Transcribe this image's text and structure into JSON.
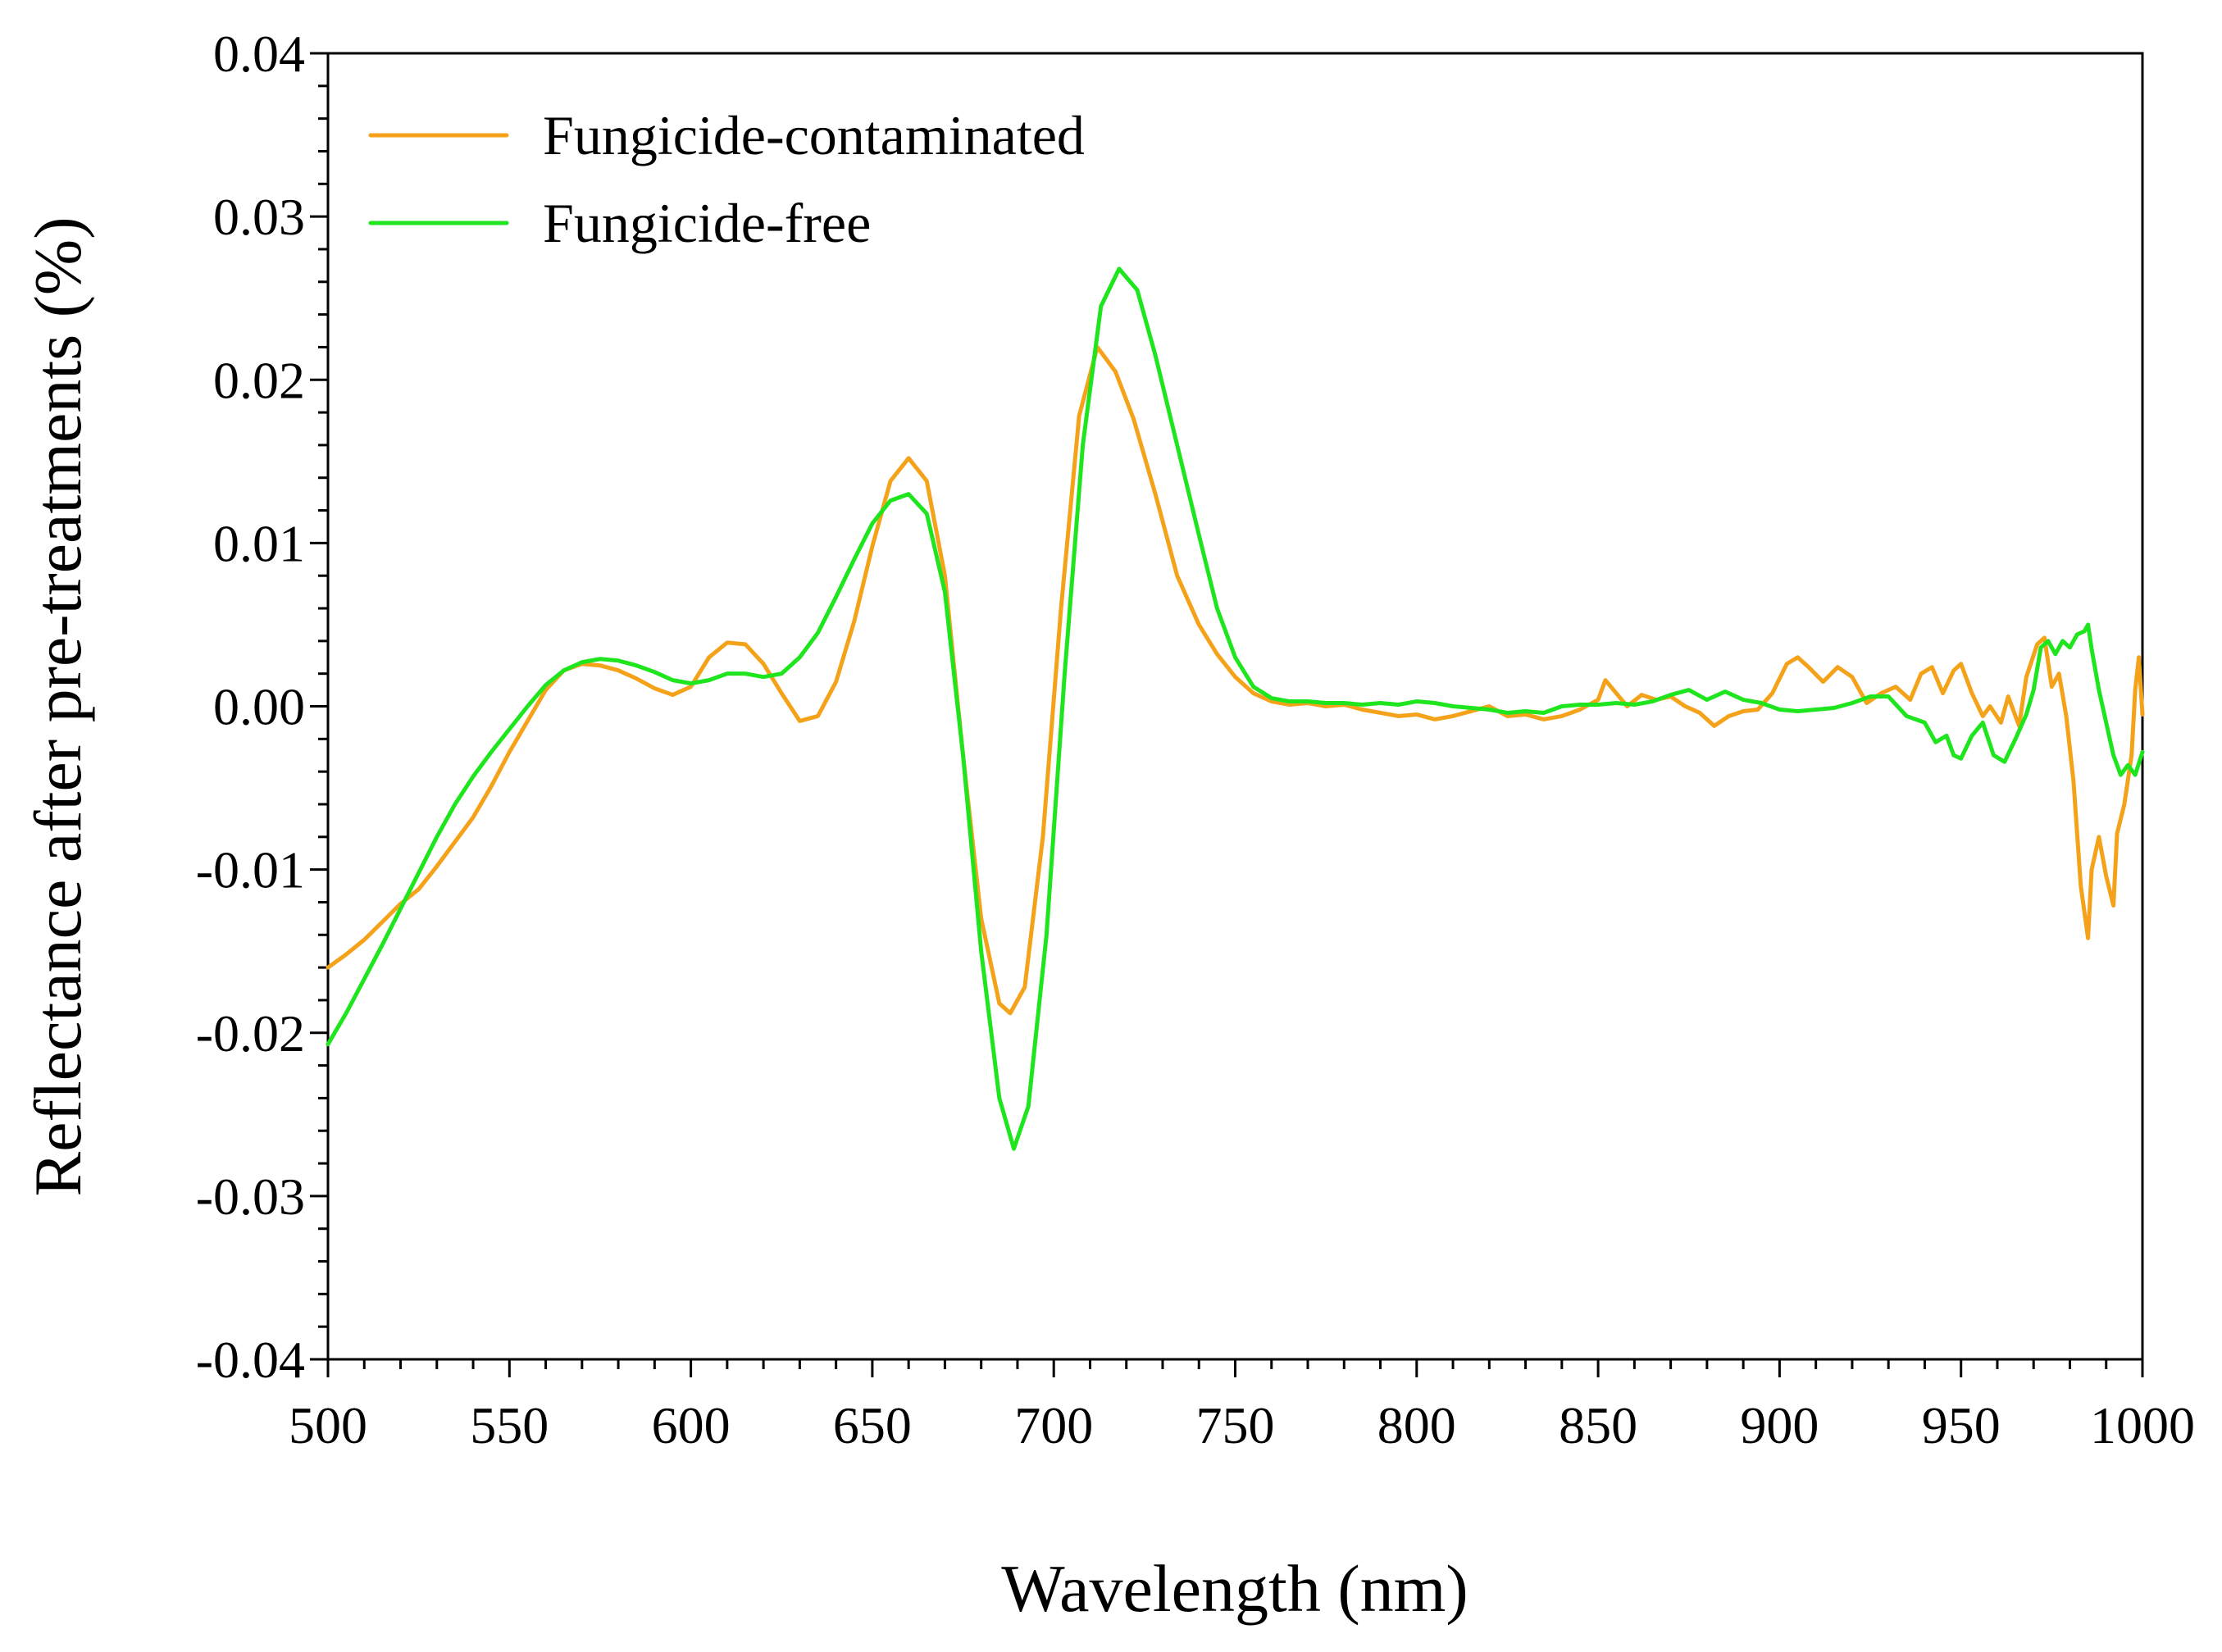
{
  "chart_data": {
    "type": "line",
    "title": "",
    "xlabel": "Wavelength (nm)",
    "ylabel": "Reflectance after pre-treatments (%)",
    "xlim": [
      500,
      1000
    ],
    "ylim": [
      -0.04,
      0.04
    ],
    "x_major_ticks": [
      500,
      550,
      600,
      650,
      700,
      750,
      800,
      850,
      900,
      950,
      1000
    ],
    "x_tick_labels": [
      "500",
      "550",
      "600",
      "650",
      "700",
      "750",
      "800",
      "850",
      "900",
      "950",
      "1000"
    ],
    "x_minor_step": 10,
    "y_major_ticks": [
      -0.04,
      -0.03,
      -0.02,
      -0.01,
      0.0,
      0.01,
      0.02,
      0.03,
      0.04
    ],
    "y_tick_labels": [
      "-0.04",
      "-0.03",
      "-0.02",
      "-0.01",
      "0.00",
      "0.01",
      "0.02",
      "0.03",
      "0.04"
    ],
    "y_minor_step": 0.002,
    "grid": false,
    "legend_position": "top-left",
    "series": [
      {
        "name": "Fungicide-contaminated",
        "color": "#F5A21B",
        "points": [
          [
            500,
            -0.016
          ],
          [
            505,
            -0.0152
          ],
          [
            510,
            -0.0143
          ],
          [
            515,
            -0.0132
          ],
          [
            520,
            -0.0121
          ],
          [
            525,
            -0.0112
          ],
          [
            530,
            -0.0098
          ],
          [
            535,
            -0.0083
          ],
          [
            540,
            -0.0068
          ],
          [
            545,
            -0.0049
          ],
          [
            550,
            -0.0028
          ],
          [
            555,
            -0.0009
          ],
          [
            560,
            0.001
          ],
          [
            565,
            0.0022
          ],
          [
            570,
            0.0026
          ],
          [
            575,
            0.0025
          ],
          [
            580,
            0.0022
          ],
          [
            585,
            0.0017
          ],
          [
            590,
            0.0011
          ],
          [
            595,
            0.0007
          ],
          [
            600,
            0.0012
          ],
          [
            605,
            0.003
          ],
          [
            610,
            0.0039
          ],
          [
            615,
            0.0038
          ],
          [
            620,
            0.0026
          ],
          [
            625,
            0.0008
          ],
          [
            630,
            -0.0009
          ],
          [
            635,
            -0.0006
          ],
          [
            640,
            0.0015
          ],
          [
            645,
            0.0052
          ],
          [
            650,
            0.0098
          ],
          [
            655,
            0.0138
          ],
          [
            660,
            0.0152
          ],
          [
            665,
            0.0138
          ],
          [
            670,
            0.008
          ],
          [
            675,
            -0.003
          ],
          [
            680,
            -0.013
          ],
          [
            685,
            -0.0182
          ],
          [
            688,
            -0.0188
          ],
          [
            692,
            -0.0172
          ],
          [
            697,
            -0.008
          ],
          [
            702,
            0.006
          ],
          [
            707,
            0.0178
          ],
          [
            712,
            0.022
          ],
          [
            717,
            0.0205
          ],
          [
            722,
            0.0176
          ],
          [
            728,
            0.013
          ],
          [
            734,
            0.008
          ],
          [
            740,
            0.005
          ],
          [
            745,
            0.0032
          ],
          [
            750,
            0.0018
          ],
          [
            755,
            0.0008
          ],
          [
            760,
            0.0003
          ],
          [
            765,
            0.0001
          ],
          [
            770,
            0.0002
          ],
          [
            775,
            0.0
          ],
          [
            780,
            0.0001
          ],
          [
            785,
            -0.0002
          ],
          [
            790,
            -0.0004
          ],
          [
            795,
            -0.0006
          ],
          [
            800,
            -0.0005
          ],
          [
            805,
            -0.0008
          ],
          [
            810,
            -0.0006
          ],
          [
            815,
            -0.0003
          ],
          [
            820,
            0.0
          ],
          [
            825,
            -0.0006
          ],
          [
            830,
            -0.0005
          ],
          [
            835,
            -0.0008
          ],
          [
            840,
            -0.0006
          ],
          [
            845,
            -0.0002
          ],
          [
            850,
            0.0004
          ],
          [
            852,
            0.0016
          ],
          [
            855,
            0.0008
          ],
          [
            858,
            0.0
          ],
          [
            862,
            0.0007
          ],
          [
            866,
            0.0004
          ],
          [
            870,
            0.0006
          ],
          [
            874,
            0.0
          ],
          [
            878,
            -0.0004
          ],
          [
            882,
            -0.0012
          ],
          [
            886,
            -0.0006
          ],
          [
            890,
            -0.0003
          ],
          [
            894,
            -0.0002
          ],
          [
            898,
            0.0008
          ],
          [
            902,
            0.0026
          ],
          [
            905,
            0.003
          ],
          [
            908,
            0.0024
          ],
          [
            912,
            0.0015
          ],
          [
            916,
            0.0024
          ],
          [
            920,
            0.0018
          ],
          [
            924,
            0.0002
          ],
          [
            928,
            0.0008
          ],
          [
            932,
            0.0012
          ],
          [
            936,
            0.0004
          ],
          [
            939,
            0.002
          ],
          [
            942,
            0.0024
          ],
          [
            945,
            0.0008
          ],
          [
            948,
            0.0022
          ],
          [
            950,
            0.0026
          ],
          [
            953,
            0.0008
          ],
          [
            956,
            -0.0006
          ],
          [
            958,
            0.0
          ],
          [
            961,
            -0.001
          ],
          [
            963,
            0.0006
          ],
          [
            966,
            -0.0012
          ],
          [
            968,
            0.0018
          ],
          [
            971,
            0.0038
          ],
          [
            973,
            0.0042
          ],
          [
            975,
            0.0012
          ],
          [
            977,
            0.002
          ],
          [
            979,
            -0.0006
          ],
          [
            981,
            -0.0046
          ],
          [
            983,
            -0.011
          ],
          [
            985,
            -0.0142
          ],
          [
            986,
            -0.01
          ],
          [
            988,
            -0.008
          ],
          [
            990,
            -0.0104
          ],
          [
            992,
            -0.0122
          ],
          [
            993,
            -0.0078
          ],
          [
            995,
            -0.006
          ],
          [
            997,
            -0.003
          ],
          [
            998,
            0.001
          ],
          [
            999,
            0.003
          ],
          [
            1000,
            -0.0005
          ]
        ]
      },
      {
        "name": "Fungicide-free",
        "color": "#1FE51F",
        "points": [
          [
            500,
            -0.0207
          ],
          [
            505,
            -0.0188
          ],
          [
            510,
            -0.0167
          ],
          [
            515,
            -0.0146
          ],
          [
            520,
            -0.0124
          ],
          [
            525,
            -0.0102
          ],
          [
            530,
            -0.008
          ],
          [
            535,
            -0.006
          ],
          [
            540,
            -0.0043
          ],
          [
            545,
            -0.0028
          ],
          [
            550,
            -0.0014
          ],
          [
            555,
            0.0
          ],
          [
            560,
            0.0013
          ],
          [
            565,
            0.0022
          ],
          [
            570,
            0.0027
          ],
          [
            575,
            0.0029
          ],
          [
            580,
            0.0028
          ],
          [
            585,
            0.0025
          ],
          [
            590,
            0.0021
          ],
          [
            595,
            0.0016
          ],
          [
            600,
            0.0014
          ],
          [
            605,
            0.0016
          ],
          [
            610,
            0.002
          ],
          [
            615,
            0.002
          ],
          [
            620,
            0.0018
          ],
          [
            625,
            0.002
          ],
          [
            630,
            0.003
          ],
          [
            635,
            0.0045
          ],
          [
            640,
            0.0067
          ],
          [
            645,
            0.009
          ],
          [
            650,
            0.0112
          ],
          [
            655,
            0.0126
          ],
          [
            660,
            0.013
          ],
          [
            665,
            0.0118
          ],
          [
            670,
            0.007
          ],
          [
            675,
            -0.003
          ],
          [
            680,
            -0.015
          ],
          [
            685,
            -0.024
          ],
          [
            689,
            -0.0271
          ],
          [
            693,
            -0.0245
          ],
          [
            698,
            -0.014
          ],
          [
            703,
            0.002
          ],
          [
            708,
            0.016
          ],
          [
            713,
            0.0245
          ],
          [
            718,
            0.0268
          ],
          [
            723,
            0.0255
          ],
          [
            728,
            0.0215
          ],
          [
            734,
            0.016
          ],
          [
            740,
            0.0105
          ],
          [
            745,
            0.006
          ],
          [
            750,
            0.003
          ],
          [
            755,
            0.0012
          ],
          [
            760,
            0.0005
          ],
          [
            765,
            0.0003
          ],
          [
            770,
            0.0003
          ],
          [
            775,
            0.0002
          ],
          [
            780,
            0.0002
          ],
          [
            785,
            0.0001
          ],
          [
            790,
            0.0002
          ],
          [
            795,
            0.0001
          ],
          [
            800,
            0.0003
          ],
          [
            805,
            0.0002
          ],
          [
            810,
            0.0
          ],
          [
            815,
            -0.0001
          ],
          [
            820,
            -0.0002
          ],
          [
            825,
            -0.0004
          ],
          [
            830,
            -0.0003
          ],
          [
            835,
            -0.0004
          ],
          [
            840,
            0.0
          ],
          [
            845,
            0.0001
          ],
          [
            850,
            0.0001
          ],
          [
            855,
            0.0002
          ],
          [
            860,
            0.0001
          ],
          [
            865,
            0.0003
          ],
          [
            870,
            0.0007
          ],
          [
            875,
            0.001
          ],
          [
            880,
            0.0004
          ],
          [
            885,
            0.0009
          ],
          [
            890,
            0.0004
          ],
          [
            895,
            0.0002
          ],
          [
            900,
            -0.0002
          ],
          [
            905,
            -0.0003
          ],
          [
            910,
            -0.0002
          ],
          [
            915,
            -0.0001
          ],
          [
            920,
            0.0002
          ],
          [
            925,
            0.0006
          ],
          [
            930,
            0.0006
          ],
          [
            935,
            -0.0006
          ],
          [
            940,
            -0.001
          ],
          [
            943,
            -0.0022
          ],
          [
            946,
            -0.0018
          ],
          [
            948,
            -0.003
          ],
          [
            950,
            -0.0032
          ],
          [
            953,
            -0.0018
          ],
          [
            956,
            -0.001
          ],
          [
            959,
            -0.003
          ],
          [
            962,
            -0.0034
          ],
          [
            965,
            -0.002
          ],
          [
            968,
            -0.0005
          ],
          [
            970,
            0.001
          ],
          [
            972,
            0.0036
          ],
          [
            974,
            0.004
          ],
          [
            976,
            0.0032
          ],
          [
            978,
            0.004
          ],
          [
            980,
            0.0036
          ],
          [
            982,
            0.0044
          ],
          [
            984,
            0.0046
          ],
          [
            985,
            0.005
          ],
          [
            986,
            0.0035
          ],
          [
            988,
            0.001
          ],
          [
            990,
            -0.001
          ],
          [
            992,
            -0.003
          ],
          [
            994,
            -0.0042
          ],
          [
            996,
            -0.0036
          ],
          [
            998,
            -0.0042
          ],
          [
            1000,
            -0.0028
          ]
        ]
      }
    ]
  }
}
